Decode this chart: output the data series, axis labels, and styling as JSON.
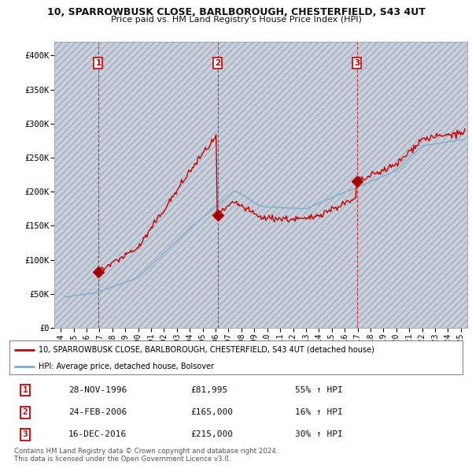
{
  "title_line1": "10, SPARROWBUSK CLOSE, BARLBOROUGH, CHESTERFIELD, S43 4UT",
  "title_line2": "Price paid vs. HM Land Registry's House Price Index (HPI)",
  "xlim": [
    1993.5,
    2025.5
  ],
  "ylim": [
    0,
    420000
  ],
  "yticks": [
    0,
    50000,
    100000,
    150000,
    200000,
    250000,
    300000,
    350000,
    400000
  ],
  "ytick_labels": [
    "£0",
    "£50K",
    "£100K",
    "£150K",
    "£200K",
    "£250K",
    "£300K",
    "£350K",
    "£400K"
  ],
  "xticks": [
    1994,
    1995,
    1996,
    1997,
    1998,
    1999,
    2000,
    2001,
    2002,
    2003,
    2004,
    2005,
    2006,
    2007,
    2008,
    2009,
    2010,
    2011,
    2012,
    2013,
    2014,
    2015,
    2016,
    2017,
    2018,
    2019,
    2020,
    2021,
    2022,
    2023,
    2024,
    2025
  ],
  "sale_dates": [
    1996.91,
    2006.15,
    2016.96
  ],
  "sale_prices": [
    81995,
    165000,
    215000
  ],
  "sale_labels": [
    "1",
    "2",
    "3"
  ],
  "red_color": "#cc0000",
  "blue_color": "#7aabcf",
  "legend_line1": "10, SPARROWBUSK CLOSE, BARLBOROUGH, CHESTERFIELD, S43 4UT (detached house)",
  "legend_line2": "HPI: Average price, detached house, Bolsover",
  "table_rows": [
    [
      "1",
      "28-NOV-1996",
      "£81,995",
      "55% ↑ HPI"
    ],
    [
      "2",
      "24-FEB-2006",
      "£165,000",
      "16% ↑ HPI"
    ],
    [
      "3",
      "16-DEC-2016",
      "£215,000",
      "30% ↑ HPI"
    ]
  ],
  "footnote": "Contains HM Land Registry data © Crown copyright and database right 2024.\nThis data is licensed under the Open Government Licence v3.0.",
  "bg_color": "#ffffff",
  "plot_bg_color": "#e8eef8",
  "grid_color": "#c8d4e8",
  "hatch_color": "#c8d0dc"
}
